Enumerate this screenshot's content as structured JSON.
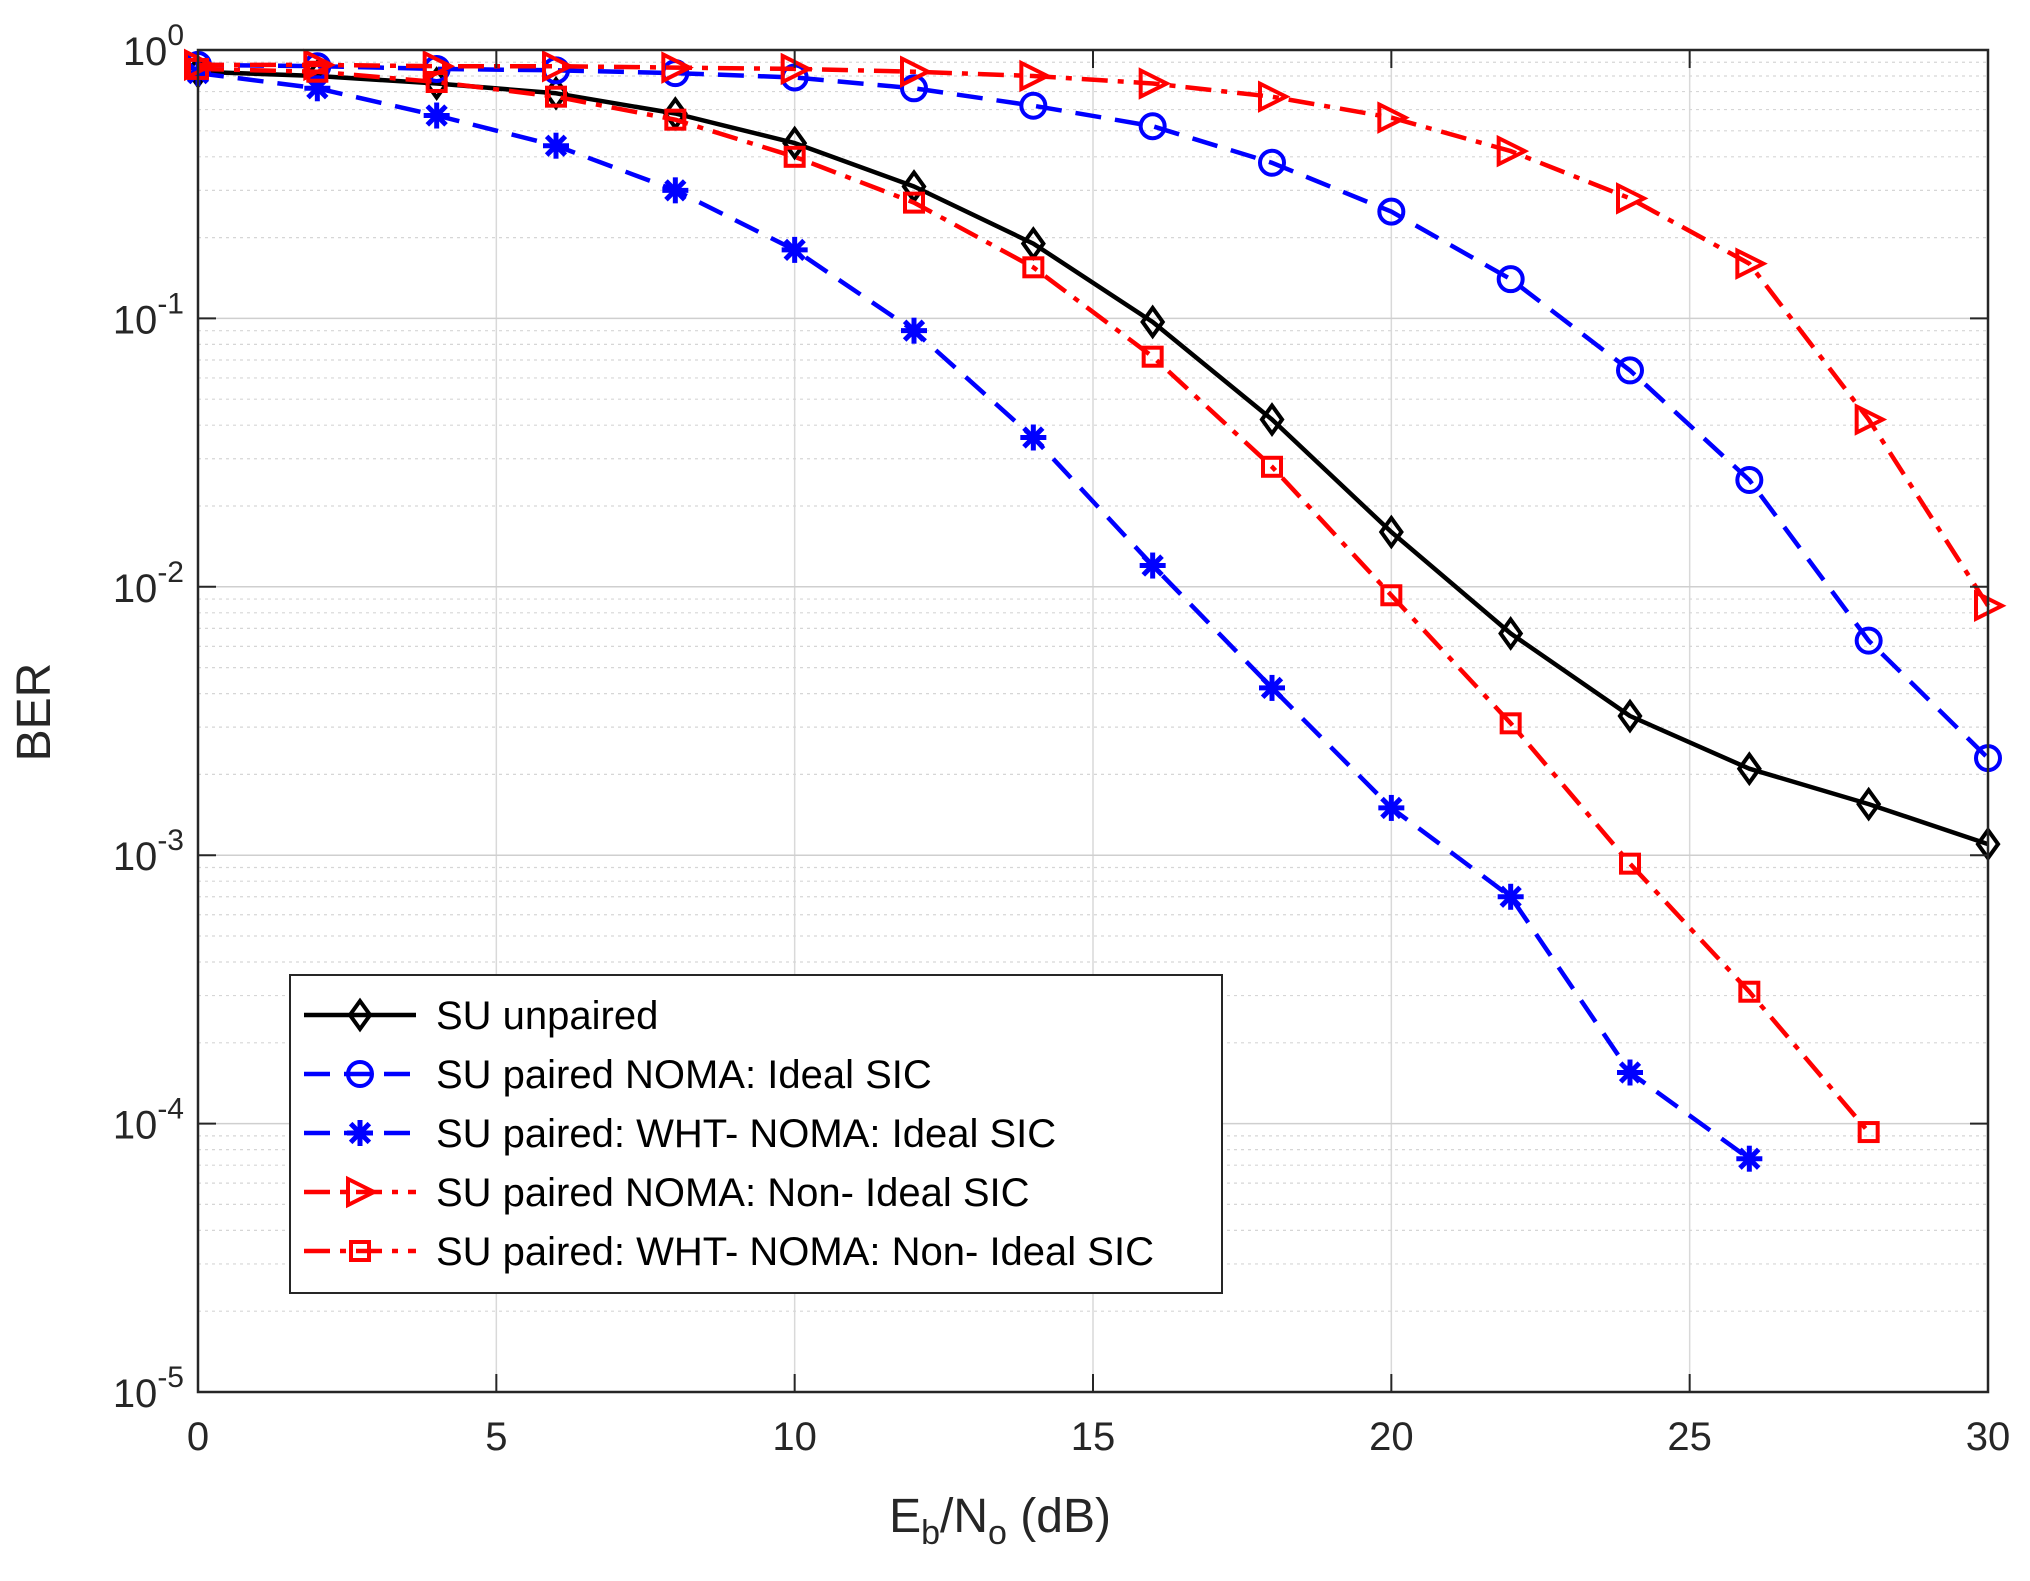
{
  "chart_data": {
    "type": "line",
    "xlabel": {
      "base": "E",
      "sub1": "b",
      "mid": "/N",
      "sub2": "o",
      "tail": " (dB)"
    },
    "ylabel": "BER",
    "x_scale": "linear",
    "y_scale": "log",
    "xlim": [
      0,
      30
    ],
    "ylim": [
      1e-05,
      1
    ],
    "x_ticks": [
      0,
      5,
      10,
      15,
      20,
      25,
      30
    ],
    "y_ticks": [
      {
        "base": "10",
        "exp": "0",
        "value": 1
      },
      {
        "base": "10",
        "exp": "-1",
        "value": 0.1
      },
      {
        "base": "10",
        "exp": "-2",
        "value": 0.01
      },
      {
        "base": "10",
        "exp": "-3",
        "value": 0.001
      },
      {
        "base": "10",
        "exp": "-4",
        "value": 0.0001
      },
      {
        "base": "10",
        "exp": "-5",
        "value": 1e-05
      }
    ],
    "grid": true,
    "minor_grid": true,
    "legend_position": "lower-left",
    "series": [
      {
        "name": "SU unpaired",
        "color": "#000000",
        "line": "solid",
        "marker": "diamond",
        "x": [
          0,
          2,
          4,
          6,
          8,
          10,
          12,
          14,
          16,
          18,
          20,
          22,
          24,
          26,
          28,
          30
        ],
        "values": [
          0.83,
          0.8,
          0.75,
          0.69,
          0.58,
          0.45,
          0.31,
          0.19,
          0.097,
          0.042,
          0.016,
          0.0067,
          0.0033,
          0.0021,
          0.00155,
          0.0011
        ]
      },
      {
        "name": "SU paired NOMA: Ideal SIC",
        "color": "#0000FF",
        "line": "dashed",
        "marker": "circle",
        "x": [
          0,
          2,
          4,
          6,
          8,
          10,
          12,
          14,
          16,
          18,
          20,
          22,
          24,
          26,
          28,
          30
        ],
        "values": [
          0.88,
          0.87,
          0.85,
          0.84,
          0.82,
          0.79,
          0.72,
          0.62,
          0.52,
          0.38,
          0.25,
          0.14,
          0.064,
          0.025,
          0.0063,
          0.0023
        ]
      },
      {
        "name": "SU paired: WHT- NOMA: Ideal SIC",
        "color": "#0000FF",
        "line": "dashed",
        "marker": "star",
        "x": [
          0,
          2,
          4,
          6,
          8,
          10,
          12,
          14,
          16,
          18,
          20,
          22,
          24,
          26
        ],
        "values": [
          0.82,
          0.72,
          0.57,
          0.44,
          0.3,
          0.18,
          0.09,
          0.036,
          0.012,
          0.0042,
          0.0015,
          0.0007,
          0.000155,
          7.4e-05
        ]
      },
      {
        "name": "SU paired NOMA: Non- Ideal SIC",
        "color": "#FF0000",
        "line": "dashdot",
        "marker": "triangle-right",
        "x": [
          0,
          2,
          4,
          6,
          8,
          10,
          12,
          14,
          16,
          18,
          20,
          22,
          24,
          26,
          28,
          30
        ],
        "values": [
          0.88,
          0.88,
          0.87,
          0.87,
          0.86,
          0.85,
          0.83,
          0.8,
          0.75,
          0.67,
          0.56,
          0.42,
          0.28,
          0.16,
          0.042,
          0.0085
        ]
      },
      {
        "name": "SU paired: WHT- NOMA: Non- Ideal SIC",
        "color": "#FF0000",
        "line": "dashdot",
        "marker": "square",
        "x": [
          0,
          2,
          4,
          6,
          8,
          10,
          12,
          14,
          16,
          18,
          20,
          22,
          24,
          26,
          28
        ],
        "values": [
          0.85,
          0.83,
          0.76,
          0.67,
          0.55,
          0.4,
          0.27,
          0.155,
          0.072,
          0.028,
          0.0093,
          0.0031,
          0.00093,
          0.00031,
          9.3e-05
        ]
      }
    ]
  }
}
